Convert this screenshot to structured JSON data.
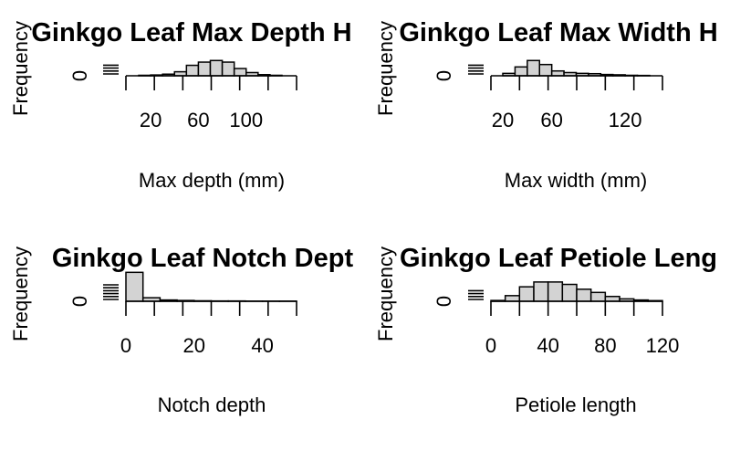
{
  "chart_data": [
    {
      "type": "bar",
      "title": "Ginkgo Leaf Max Depth H",
      "xlabel": "Max depth (mm)",
      "ylabel": "Frequency",
      "xlim": [
        10,
        130
      ],
      "x_ticks": [
        20,
        60,
        100
      ],
      "y_ticks": [
        "0"
      ],
      "bins": [
        {
          "start": 10,
          "end": 20,
          "count": 0.3
        },
        {
          "start": 20,
          "end": 30,
          "count": 0.5
        },
        {
          "start": 30,
          "end": 40,
          "count": 1
        },
        {
          "start": 40,
          "end": 50,
          "count": 2.5
        },
        {
          "start": 50,
          "end": 60,
          "count": 6.5
        },
        {
          "start": 60,
          "end": 70,
          "count": 8.5
        },
        {
          "start": 70,
          "end": 80,
          "count": 9.5
        },
        {
          "start": 80,
          "end": 90,
          "count": 8.5
        },
        {
          "start": 90,
          "end": 100,
          "count": 4.5
        },
        {
          "start": 100,
          "end": 110,
          "count": 2
        },
        {
          "start": 110,
          "end": 120,
          "count": 0.7
        },
        {
          "start": 120,
          "end": 130,
          "count": 0.3
        }
      ],
      "ymax": 20
    },
    {
      "type": "bar",
      "title": "Ginkgo Leaf Max Width H",
      "xlabel": "Max width (mm)",
      "ylabel": "Frequency",
      "xlim": [
        20,
        140
      ],
      "x_ticks": [
        20,
        60,
        120
      ],
      "y_ticks": [
        "0"
      ],
      "bins": [
        {
          "start": 20,
          "end": 30,
          "count": 1.5
        },
        {
          "start": 30,
          "end": 40,
          "count": 5.5
        },
        {
          "start": 40,
          "end": 50,
          "count": 9.5
        },
        {
          "start": 50,
          "end": 60,
          "count": 7
        },
        {
          "start": 60,
          "end": 70,
          "count": 3
        },
        {
          "start": 70,
          "end": 80,
          "count": 2
        },
        {
          "start": 80,
          "end": 90,
          "count": 1.5
        },
        {
          "start": 90,
          "end": 100,
          "count": 1.3
        },
        {
          "start": 100,
          "end": 110,
          "count": 0.8
        },
        {
          "start": 110,
          "end": 120,
          "count": 0.6
        },
        {
          "start": 120,
          "end": 130,
          "count": 0.3
        },
        {
          "start": 130,
          "end": 140,
          "count": 0.2
        }
      ],
      "ymax": 20
    },
    {
      "type": "bar",
      "title": "Ginkgo Leaf Notch Dept",
      "xlabel": "Notch depth",
      "ylabel": "Frequency",
      "xlim": [
        0,
        50
      ],
      "x_ticks": [
        0,
        20,
        40
      ],
      "y_ticks": [
        "0"
      ],
      "bins": [
        {
          "start": 0,
          "end": 5,
          "count": 18
        },
        {
          "start": 5,
          "end": 10,
          "count": 2.2
        },
        {
          "start": 10,
          "end": 15,
          "count": 0.8
        },
        {
          "start": 15,
          "end": 20,
          "count": 0.5
        },
        {
          "start": 20,
          "end": 25,
          "count": 0.3
        },
        {
          "start": 25,
          "end": 30,
          "count": 0.2
        },
        {
          "start": 30,
          "end": 35,
          "count": 0.2
        },
        {
          "start": 35,
          "end": 40,
          "count": 0.1
        },
        {
          "start": 40,
          "end": 45,
          "count": 0.1
        },
        {
          "start": 45,
          "end": 50,
          "count": 0.1
        }
      ],
      "ymax": 20
    },
    {
      "type": "bar",
      "title": "Ginkgo Leaf Petiole Leng",
      "xlabel": "Petiole length",
      "ylabel": "Frequency",
      "xlim": [
        0,
        120
      ],
      "x_ticks": [
        0,
        40,
        80,
        120
      ],
      "y_ticks": [
        "0"
      ],
      "bins": [
        {
          "start": 0,
          "end": 10,
          "count": 0.5
        },
        {
          "start": 10,
          "end": 20,
          "count": 3.5
        },
        {
          "start": 20,
          "end": 30,
          "count": 9
        },
        {
          "start": 30,
          "end": 40,
          "count": 12
        },
        {
          "start": 40,
          "end": 50,
          "count": 12
        },
        {
          "start": 50,
          "end": 60,
          "count": 10.5
        },
        {
          "start": 60,
          "end": 70,
          "count": 7.5
        },
        {
          "start": 70,
          "end": 80,
          "count": 5.5
        },
        {
          "start": 80,
          "end": 90,
          "count": 3
        },
        {
          "start": 90,
          "end": 100,
          "count": 1.5
        },
        {
          "start": 100,
          "end": 110,
          "count": 0.8
        },
        {
          "start": 110,
          "end": 120,
          "count": 0.4
        }
      ],
      "ymax": 20
    }
  ]
}
